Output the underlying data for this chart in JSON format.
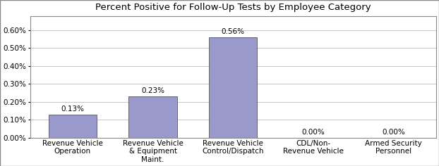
{
  "title": "Percent Positive for Follow-Up Tests by Employee Category",
  "categories": [
    "Revenue Vehicle\nOperation",
    "Revenue Vehicle\n& Equipment\nMaint.",
    "Revenue Vehicle\nControl/Dispatch",
    "CDL/Non-\nRevenue Vehicle",
    "Armed Security\nPersonnel"
  ],
  "values": [
    0.0013,
    0.0023,
    0.0056,
    0.0,
    0.0
  ],
  "labels": [
    "0.13%",
    "0.23%",
    "0.56%",
    "0.00%",
    "0.00%"
  ],
  "bar_color": "#9999cc",
  "bar_edge_color": "#555555",
  "ylim": [
    0,
    0.0068
  ],
  "yticks": [
    0.0,
    0.001,
    0.002,
    0.003,
    0.004,
    0.005,
    0.006
  ],
  "ytick_labels": [
    "0.00%",
    "0.10%",
    "0.20%",
    "0.30%",
    "0.40%",
    "0.50%",
    "0.60%"
  ],
  "title_fontsize": 9.5,
  "tick_fontsize": 7.5,
  "label_fontsize": 7.5,
  "background_color": "#ffffff",
  "grid_color": "#bbbbbb",
  "bar_width": 0.6
}
